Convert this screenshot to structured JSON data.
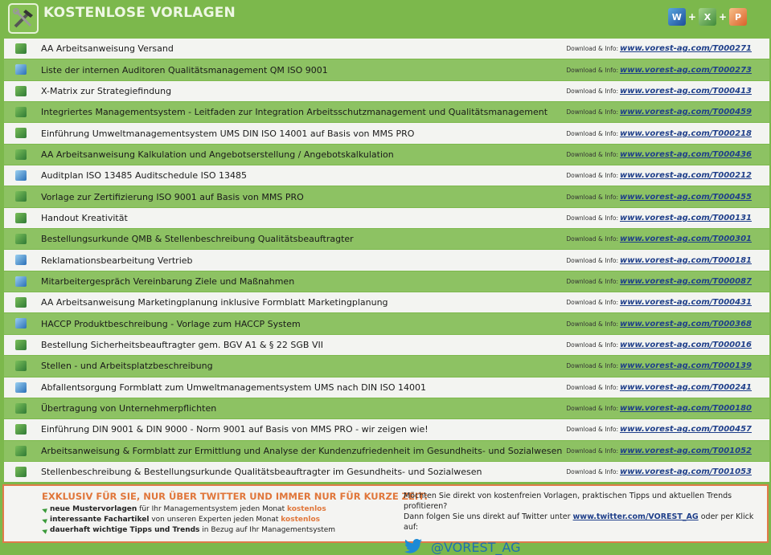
{
  "header": {
    "title": "KOSTENLOSE VORLAGEN",
    "logo_icon": "tools-icon",
    "app_icons": [
      "word-icon",
      "excel-icon",
      "powerpoint-icon"
    ],
    "plus": "+"
  },
  "colors": {
    "brand_green": "#7cb84c",
    "row_green": "#8dc263",
    "accent_orange": "#e0763a",
    "link_blue": "#1f3f8a"
  },
  "rows": [
    {
      "title": "AA Arbeitsanweisung Versand",
      "icon": "green",
      "label": "Download & Info:",
      "link": "www.vorest-ag.com/T000271"
    },
    {
      "title": "Liste der internen Auditoren Qualitätsmanagement QM ISO 9001",
      "icon": "blue",
      "label": "Download & Info:",
      "link": "www.vorest-ag.com/T000273"
    },
    {
      "title": "X-Matrix zur Strategiefindung",
      "icon": "green",
      "label": "Download & Info:",
      "link": "www.vorest-ag.com/T000413"
    },
    {
      "title": "Integriertes Managementsystem - Leitfaden zur Integration Arbeitsschutzmanagement und Qualitätsmanagement",
      "icon": "green",
      "label": "Download & Info:",
      "link": "www.vorest-ag.com/T000459"
    },
    {
      "title": "Einführung Umweltmanagementsystem UMS DIN ISO 14001 auf Basis von MMS PRO",
      "icon": "green",
      "label": "Download & Info:",
      "link": "www.vorest-ag.com/T000218"
    },
    {
      "title": "AA Arbeitsanweisung Kalkulation und Angebotserstellung / Angebotskalkulation",
      "icon": "green",
      "label": "Download & Info:",
      "link": "www.vorest-ag.com/T000436"
    },
    {
      "title": "Auditplan ISO 13485 Auditschedule ISO 13485",
      "icon": "blue",
      "label": "Download & Info:",
      "link": "www.vorest-ag.com/T000212"
    },
    {
      "title": "Vorlage zur Zertifizierung ISO 9001 auf Basis von MMS PRO",
      "icon": "green",
      "label": "Download & Info:",
      "link": "www.vorest-ag.com/T000455"
    },
    {
      "title": "Handout Kreativität",
      "icon": "green",
      "label": "Download & Info:",
      "link": "www.vorest-ag.com/T000131"
    },
    {
      "title": "Bestellungsurkunde QMB & Stellenbeschreibung Qualitätsbeauftragter",
      "icon": "green",
      "label": "Download & Info:",
      "link": "www.vorest-ag.com/T000301"
    },
    {
      "title": "Reklamationsbearbeitung Vertrieb",
      "icon": "blue",
      "label": "Download & Info:",
      "link": "www.vorest-ag.com/T000181"
    },
    {
      "title": "Mitarbeitergespräch Vereinbarung Ziele und Maßnahmen",
      "icon": "blue",
      "label": "Download & Info:",
      "link": "www.vorest-ag.com/T000087"
    },
    {
      "title": "AA Arbeitsanweisung Marketingplanung inklusive Formblatt Marketingplanung",
      "icon": "green",
      "label": "Download & Info:",
      "link": "www.vorest-ag.com/T000431"
    },
    {
      "title": "HACCP Produktbeschreibung - Vorlage zum HACCP System",
      "icon": "blue",
      "label": "Download & Info:",
      "link": "www.vorest-ag.com/T000368"
    },
    {
      "title": "Bestellung Sicherheitsbeauftragter gem. BGV A1 & § 22 SGB VII",
      "icon": "green",
      "label": "Download & Info:",
      "link": "www.vorest-ag.com/T000016"
    },
    {
      "title": "Stellen - und Arbeitsplatzbeschreibung",
      "icon": "green",
      "label": "Download & Info:",
      "link": "www.vorest-ag.com/T000139"
    },
    {
      "title": "Abfallentsorgung Formblatt zum Umweltmanagementsystem UMS nach DIN ISO 14001",
      "icon": "blue",
      "label": "Download & Info:",
      "link": "www.vorest-ag.com/T000241"
    },
    {
      "title": "Übertragung von Unternehmerpflichten",
      "icon": "green",
      "label": "Download & Info:",
      "link": "www.vorest-ag.com/T000180"
    },
    {
      "title": "Einführung DIN 9001 & DIN 9000 - Norm 9001 auf Basis von MMS PRO - wir zeigen wie!",
      "icon": "green",
      "label": "Download & Info:",
      "link": "www.vorest-ag.com/T000457"
    },
    {
      "title": "Arbeitsanweisung & Formblatt zur Ermittlung und Analyse der Kundenzufriedenheit im Gesundheits- und Sozialwesen",
      "icon": "green",
      "label": "Download & Info:",
      "link": "www.vorest-ag.com/T001052"
    },
    {
      "title": "Stellenbeschreibung & Bestellungsurkunde Qualitätsbeauftragter im Gesundheits- und Sozialwesen",
      "icon": "green",
      "label": "Download & Info:",
      "link": "www.vorest-ag.com/T001053"
    }
  ],
  "footer": {
    "headline": "EXKLUSIV FÜR SIE, NUR ÜBER TWITTER UND IMMER NUR FÜR KURZE ZEIT:",
    "items": [
      {
        "bold": "neue Mustervorlagen",
        "text": " für Ihr Managementsystem jeden Monat ",
        "highlight": "kostenlos"
      },
      {
        "bold": "interessante Fachartikel",
        "text": " von unseren Experten jeden Monat ",
        "highlight": "kostenlos"
      },
      {
        "bold": "dauerhaft wichtige Tipps und Trends",
        "text": " in Bezug auf Ihr Managementsystem",
        "highlight": ""
      }
    ],
    "line1": "Möchten Sie direkt von kostenfreien Vorlagen, praktischen Tipps und aktuellen Trends profitieren?",
    "line2_pre": "Dann folgen Sie uns direkt auf Twitter unter ",
    "line2_link": "www.twitter.com/VOREST_AG",
    "line2_post": " oder per Klick auf:",
    "twitter_handle": "@VOREST_AG"
  }
}
